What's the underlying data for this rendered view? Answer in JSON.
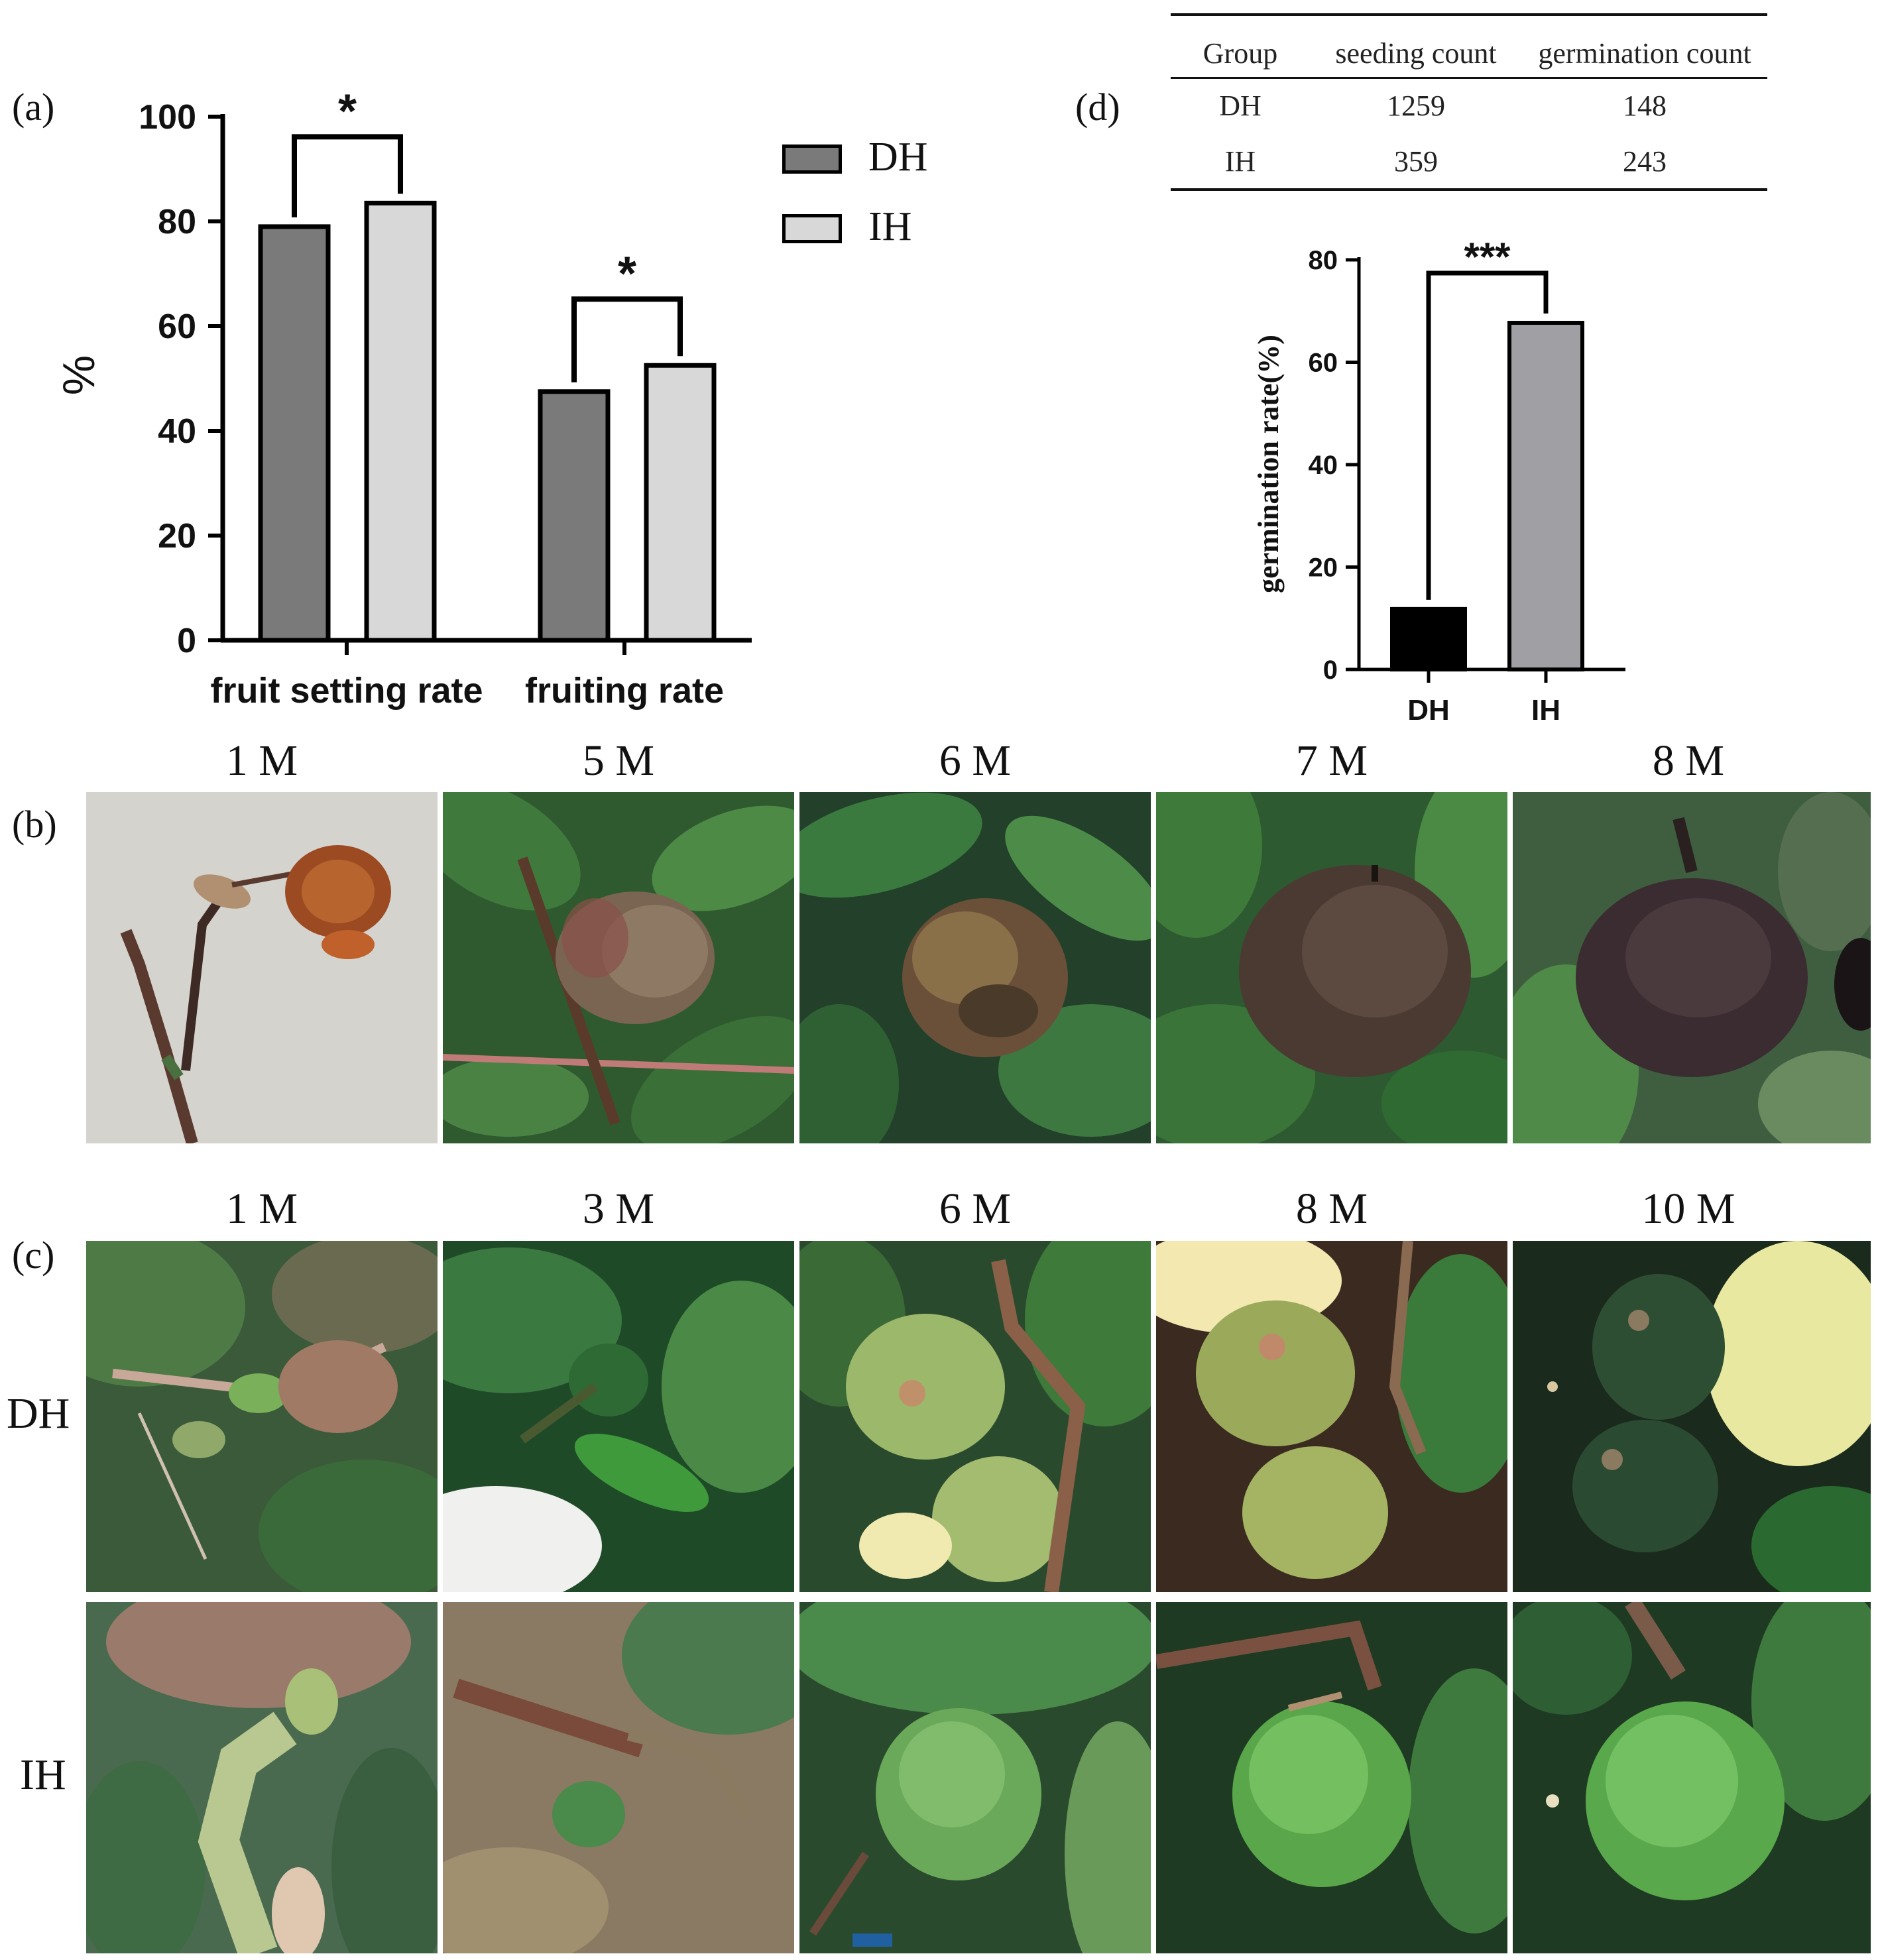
{
  "panels": {
    "a": "(a)",
    "b": "(b)",
    "c": "(c)",
    "d": "(d)"
  },
  "chart_data": [
    {
      "type": "bar",
      "panel": "a",
      "title": "",
      "xlabel": "",
      "ylabel": "%",
      "ylim": [
        0,
        100
      ],
      "yticks": [
        0,
        20,
        40,
        60,
        80,
        100
      ],
      "categories": [
        "fruit setting rate",
        "fruiting rate"
      ],
      "series": [
        {
          "name": "DH",
          "values": [
            79,
            47.5
          ],
          "color": "#7a7a7a"
        },
        {
          "name": "IH",
          "values": [
            83.5,
            52.5
          ],
          "color": "#d8d8d8"
        }
      ],
      "significance": [
        "*",
        "*"
      ],
      "legend": "top-right",
      "grid": false
    },
    {
      "type": "bar",
      "panel": "d",
      "title": "",
      "xlabel": "",
      "ylabel": "germination rate(%)",
      "ylim": [
        0,
        80
      ],
      "yticks": [
        0,
        20,
        40,
        60,
        80
      ],
      "categories": [
        "DH",
        "IH"
      ],
      "values": [
        11.8,
        67.7
      ],
      "colors": [
        "#000000",
        "#a0a0a4"
      ],
      "significance": "***",
      "grid": false
    }
  ],
  "table_d": {
    "headers": [
      "Group",
      "seeding count",
      "germination count"
    ],
    "rows": [
      [
        "DH",
        "1259",
        "148"
      ],
      [
        "IH",
        "359",
        "243"
      ]
    ]
  },
  "photos_b": {
    "titles": [
      "1 M",
      "5 M",
      "6 M",
      "7 M",
      "8 M"
    ]
  },
  "photos_c": {
    "titles": [
      "1 M",
      "3 M",
      "6 M",
      "8 M",
      "10 M"
    ],
    "row_labels": [
      "DH",
      "IH"
    ]
  }
}
